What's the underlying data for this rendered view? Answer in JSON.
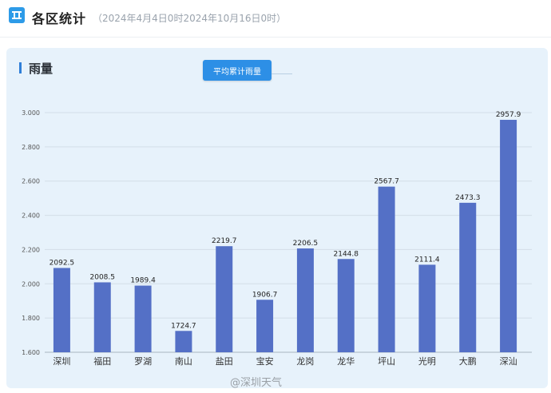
{
  "header": {
    "title": "各区统计",
    "range": "（2024年4月4日0时2024年10月16日0时）"
  },
  "panel": {
    "title": "雨量",
    "tab_label": "平均累计雨量"
  },
  "watermark": "@深圳天气",
  "colors": {
    "bar": "#5470c6",
    "accent": "#2d8fe6"
  },
  "chart_data": {
    "type": "bar",
    "title": "",
    "xlabel": "",
    "ylabel": "",
    "categories": [
      "深圳",
      "福田",
      "罗湖",
      "南山",
      "盐田",
      "宝安",
      "龙岗",
      "龙华",
      "坪山",
      "光明",
      "大鹏",
      "深汕"
    ],
    "values": [
      2092.5,
      2008.5,
      1989.4,
      1724.7,
      2219.7,
      1906.7,
      2206.5,
      2144.8,
      2567.7,
      2111.4,
      2473.3,
      2957.9
    ],
    "value_labels": [
      "2092.5",
      "2008.5",
      "1989.4",
      "1724.7",
      "2219.7",
      "1906.7",
      "2206.5",
      "2144.8",
      "2567.7",
      "2111.4",
      "2473.3",
      "2957.9"
    ],
    "yticks": [
      1600,
      1800,
      2000,
      2200,
      2400,
      2600,
      2800,
      3000
    ],
    "ytick_labels": [
      "1.600",
      "1.800",
      "2.000",
      "2.200",
      "2.400",
      "2.600",
      "2.800",
      "3.000"
    ],
    "ylim": [
      1600,
      3000
    ],
    "grid": true
  }
}
